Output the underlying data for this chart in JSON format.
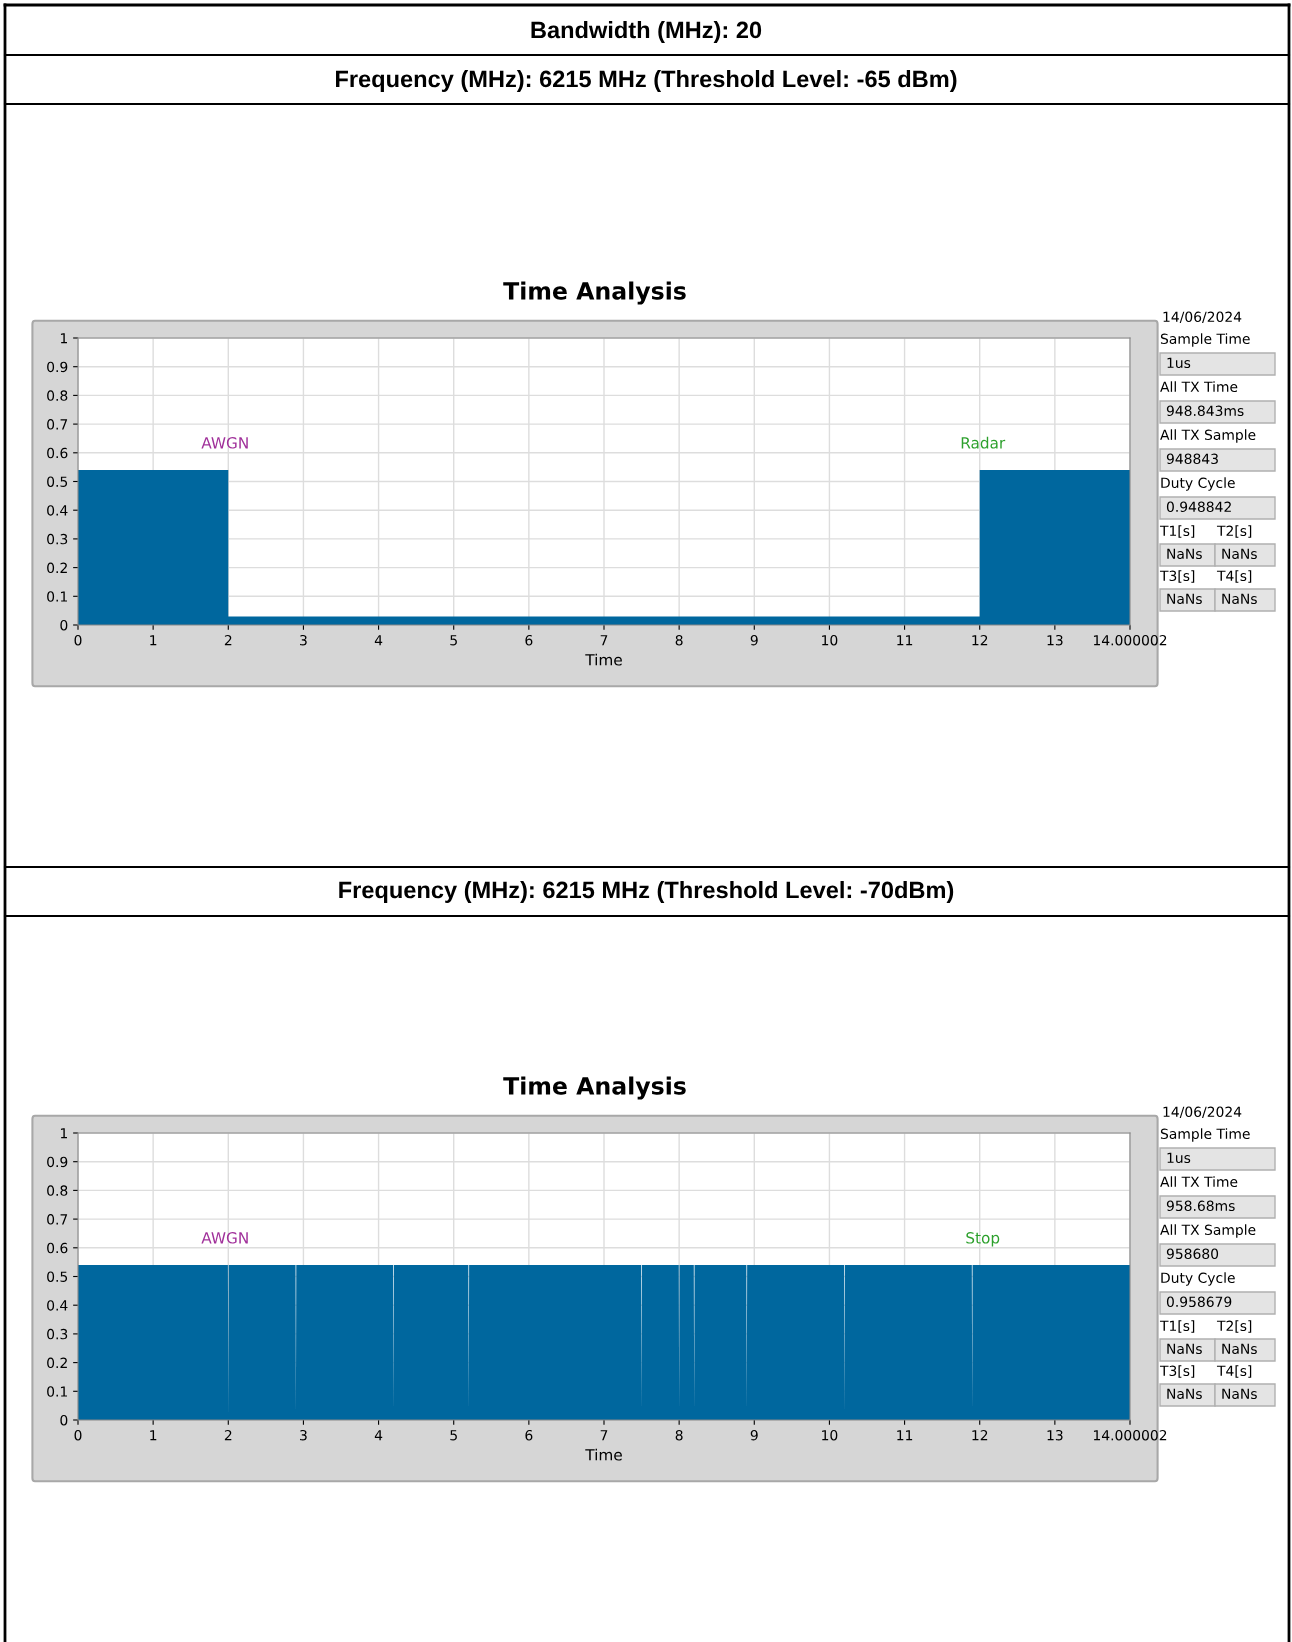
{
  "chart_data": [
    {
      "type": "area",
      "title": "Time Analysis",
      "subtitle": "Frequency (MHz): 6215 MHz (Threshold Level: -65 dBm)",
      "xlabel": "Time",
      "color": "#00679e",
      "x": [
        0,
        2,
        2,
        12,
        12,
        14.000002
      ],
      "values": [
        0.54,
        0.54,
        0.03,
        0.03,
        0.54,
        0.54
      ],
      "xlim": [
        0,
        14.000002
      ],
      "ylim": [
        0,
        1
      ],
      "xticks": [
        0,
        1,
        2,
        3,
        4,
        5,
        6,
        7,
        8,
        9,
        10,
        11,
        12,
        13,
        14.000002
      ],
      "yticks": [
        0,
        0.1,
        0.2,
        0.3,
        0.4,
        0.5,
        0.6,
        0.7,
        0.8,
        0.9,
        1
      ],
      "grid": true,
      "annotations": [
        "AWGN",
        "Radar",
        "14/06/2024",
        "Sample Time",
        "1us",
        "All TX Time",
        "948.843ms",
        "All TX Sample",
        "948843",
        "Duty Cycle",
        "0.948842",
        "T1[s]",
        "T2[s]",
        "NaNs",
        "NaNs",
        "T3[s]",
        "T4[s]",
        "NaNs",
        "NaNs",
        "Bandwidth (MHz): 20"
      ]
    },
    {
      "type": "area",
      "title": "Time Analysis",
      "subtitle": "Frequency (MHz): 6215 MHz (Threshold Level: -70dBm)",
      "xlabel": "Time",
      "color": "#00679e",
      "x": [
        0,
        1.995,
        2.0,
        2.005,
        2.895,
        2.9,
        2.905,
        4.195,
        4.2,
        4.205,
        5.195,
        5.2,
        5.205,
        7.495,
        7.5,
        7.505,
        7.995,
        8.0,
        8.005,
        8.195,
        8.2,
        8.205,
        8.895,
        8.9,
        8.905,
        10.195,
        10.2,
        10.205,
        11.895,
        11.9,
        11.905,
        14.000002
      ],
      "values": [
        0.54,
        0.54,
        0.01,
        0.54,
        0.54,
        0.03,
        0.54,
        0.54,
        0.03,
        0.54,
        0.54,
        0.03,
        0.54,
        0.54,
        0.03,
        0.54,
        0.54,
        0.03,
        0.54,
        0.54,
        0.03,
        0.54,
        0.54,
        0.03,
        0.54,
        0.54,
        0.03,
        0.54,
        0.54,
        0.03,
        0.54,
        0.54
      ],
      "xlim": [
        0,
        14.000002
      ],
      "ylim": [
        0,
        1
      ],
      "xticks": [
        0,
        1,
        2,
        3,
        4,
        5,
        6,
        7,
        8,
        9,
        10,
        11,
        12,
        13,
        14.000002
      ],
      "yticks": [
        0,
        0.1,
        0.2,
        0.3,
        0.4,
        0.5,
        0.6,
        0.7,
        0.8,
        0.9,
        1
      ],
      "grid": true,
      "annotations": [
        "AWGN",
        "Stop",
        "14/06/2024",
        "Sample Time",
        "1us",
        "All TX Time",
        "958.68ms",
        "All TX Sample",
        "958680",
        "Duty Cycle",
        "0.958679",
        "T1[s]",
        "T2[s]",
        "NaNs",
        "NaNs",
        "T3[s]",
        "T4[s]",
        "NaNs",
        "NaNs"
      ]
    }
  ]
}
